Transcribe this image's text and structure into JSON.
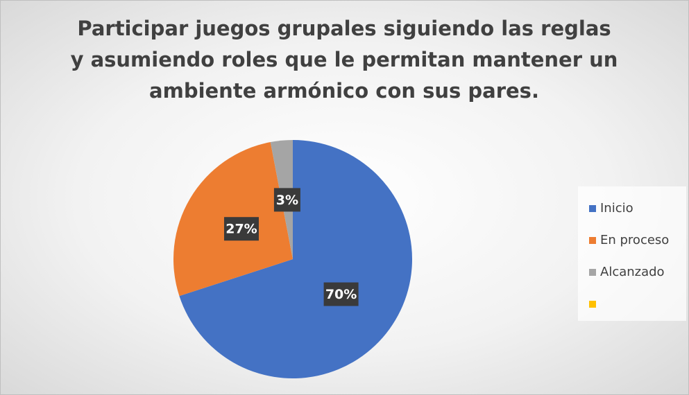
{
  "chart_data": {
    "type": "pie",
    "title": "Participar juegos grupales siguiendo las reglas y asumiendo roles que le permitan mantener un ambiente armónico con sus pares.",
    "categories": [
      "Inicio",
      "En proceso",
      "Alcanzado",
      null
    ],
    "values": [
      70,
      27,
      3,
      0
    ],
    "value_labels": [
      "70%",
      "27%",
      "3%",
      null
    ],
    "colors": [
      "#4472c4",
      "#ed7d31",
      "#a5a5a5",
      "#ffc000"
    ],
    "legend": "right"
  }
}
